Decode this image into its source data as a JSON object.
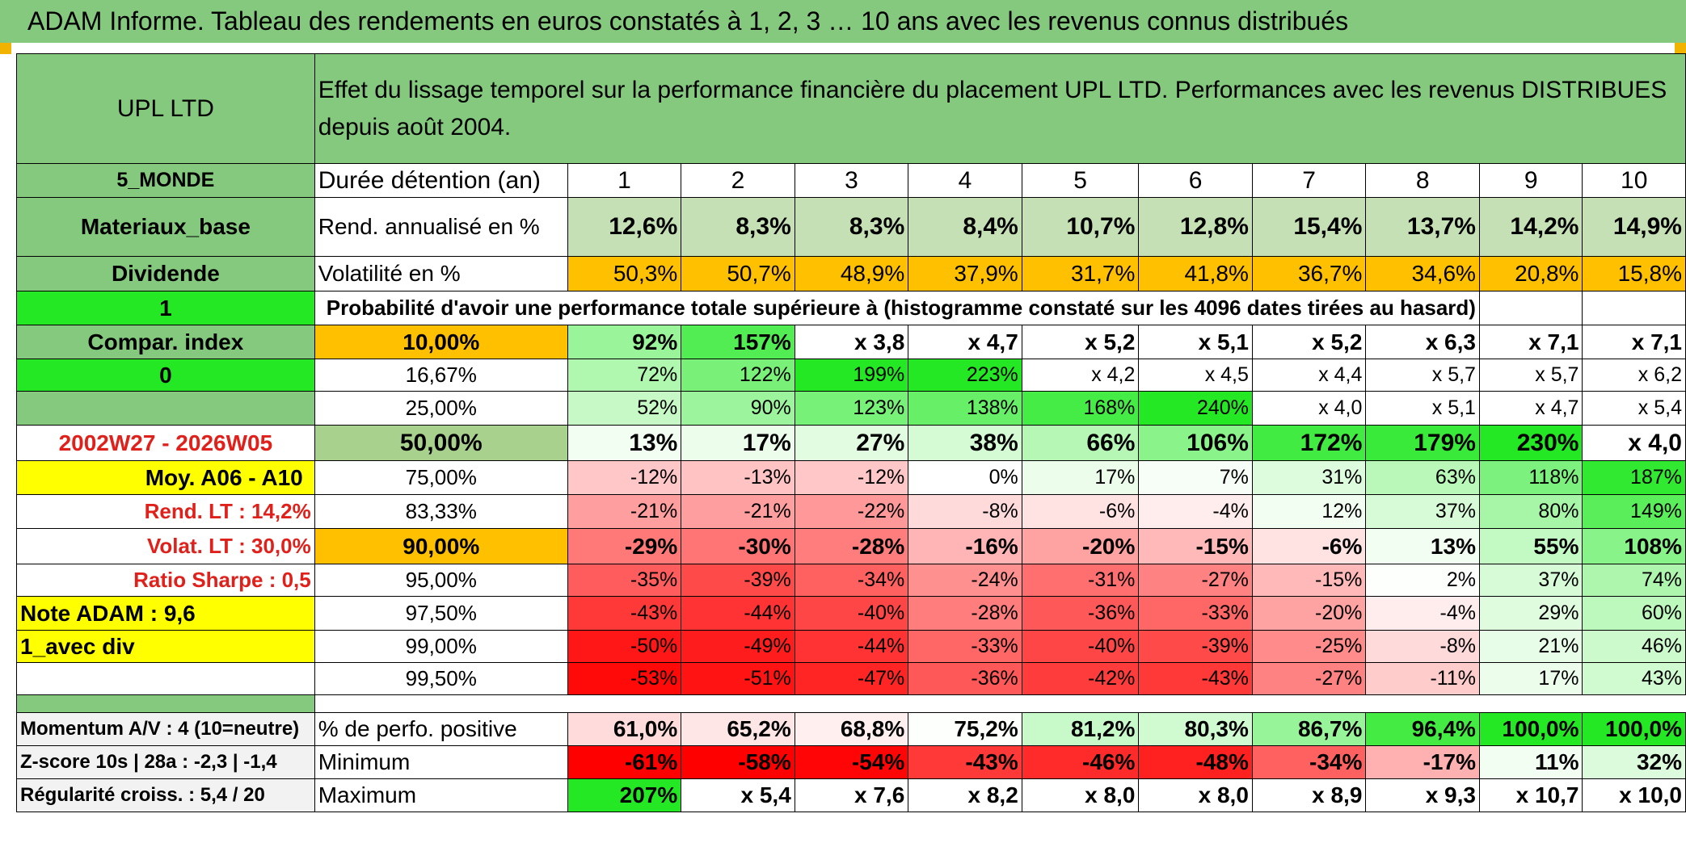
{
  "title": "ADAM Informe. Tableau des rendements en euros constatés à 1, 2, 3 … 10 ans avec les revenus connus distribués",
  "header": {
    "fund": "UPL LTD",
    "description": "Effet du lissage temporel sur la performance financière du placement UPL LTD. Performances avec les revenus DISTRIBUES depuis août 2004."
  },
  "left": {
    "region": "5_MONDE",
    "sector": "Materiaux_base",
    "income": "Dividende",
    "mode1": "1",
    "compar": "Compar. index",
    "mode2": "0",
    "period": "2002W27 - 2026W05",
    "moy": "Moy. A06 - A10",
    "rend_lt_label": "Rend. LT :",
    "rend_lt_value": "14,2%",
    "volat_lt_label": "Volat. LT :",
    "volat_lt_value": "30,0%",
    "sharpe_label": "Ratio Sharpe :",
    "sharpe_value": "0,5",
    "note": "Note ADAM : 9,6",
    "avec_div": "1_avec div"
  },
  "duration": {
    "label": "Durée détention (an)",
    "years": [
      "1",
      "2",
      "3",
      "4",
      "5",
      "6",
      "7",
      "8",
      "9",
      "10"
    ]
  },
  "rend": {
    "label": "Rend. annualisé en %",
    "values": [
      "12,6%",
      "8,3%",
      "8,3%",
      "8,4%",
      "10,7%",
      "12,8%",
      "15,4%",
      "13,7%",
      "14,2%",
      "14,9%"
    ]
  },
  "volat": {
    "label": "Volatilité en %",
    "values": [
      "50,3%",
      "50,7%",
      "48,9%",
      "37,9%",
      "31,7%",
      "41,8%",
      "36,7%",
      "34,6%",
      "20,8%",
      "15,8%"
    ]
  },
  "proba_label": "Probabilité d'avoir une performance totale supérieure à (histogramme constaté sur les 4096 dates tirées au hasard)",
  "quantiles": [
    {
      "p": "10,00%",
      "v": [
        "92%",
        "157%",
        "x 3,8",
        "x 4,7",
        "x 5,2",
        "x 5,1",
        "x 5,2",
        "x 6,3",
        "x 7,1",
        "x 7,1"
      ]
    },
    {
      "p": "16,67%",
      "v": [
        "72%",
        "122%",
        "199%",
        "223%",
        "x 4,2",
        "x 4,5",
        "x 4,4",
        "x 5,7",
        "x 5,7",
        "x 6,2"
      ]
    },
    {
      "p": "25,00%",
      "v": [
        "52%",
        "90%",
        "123%",
        "138%",
        "168%",
        "240%",
        "x 4,0",
        "x 5,1",
        "x 4,7",
        "x 5,4"
      ]
    },
    {
      "p": "50,00%",
      "v": [
        "13%",
        "17%",
        "27%",
        "38%",
        "66%",
        "106%",
        "172%",
        "179%",
        "230%",
        "x 4,0"
      ]
    },
    {
      "p": "75,00%",
      "v": [
        "-12%",
        "-13%",
        "-12%",
        "0%",
        "17%",
        "7%",
        "31%",
        "63%",
        "118%",
        "187%"
      ]
    },
    {
      "p": "83,33%",
      "v": [
        "-21%",
        "-21%",
        "-22%",
        "-8%",
        "-6%",
        "-4%",
        "12%",
        "37%",
        "80%",
        "149%"
      ]
    },
    {
      "p": "90,00%",
      "v": [
        "-29%",
        "-30%",
        "-28%",
        "-16%",
        "-20%",
        "-15%",
        "-6%",
        "13%",
        "55%",
        "108%"
      ]
    },
    {
      "p": "95,00%",
      "v": [
        "-35%",
        "-39%",
        "-34%",
        "-24%",
        "-31%",
        "-27%",
        "-15%",
        "2%",
        "37%",
        "74%"
      ]
    },
    {
      "p": "97,50%",
      "v": [
        "-43%",
        "-44%",
        "-40%",
        "-28%",
        "-36%",
        "-33%",
        "-20%",
        "-4%",
        "29%",
        "60%"
      ]
    },
    {
      "p": "99,00%",
      "v": [
        "-50%",
        "-49%",
        "-44%",
        "-33%",
        "-40%",
        "-39%",
        "-25%",
        "-8%",
        "21%",
        "46%"
      ]
    },
    {
      "p": "99,50%",
      "v": [
        "-53%",
        "-51%",
        "-47%",
        "-36%",
        "-42%",
        "-43%",
        "-27%",
        "-11%",
        "17%",
        "43%"
      ]
    }
  ],
  "bottom": {
    "momentum": "Momentum A/V : 4 (10=neutre)",
    "zscore": "Z-score 10s | 28a : -2,3 | -1,4",
    "regularite": "Régularité croiss. : 5,4 / 20",
    "positive_label": "% de perfo. positive",
    "positive": [
      "61,0%",
      "65,2%",
      "68,8%",
      "75,2%",
      "81,2%",
      "80,3%",
      "86,7%",
      "96,4%",
      "100,0%",
      "100,0%"
    ],
    "min_label": "Minimum",
    "minimum": [
      "-61%",
      "-58%",
      "-54%",
      "-43%",
      "-46%",
      "-48%",
      "-34%",
      "-17%",
      "11%",
      "32%"
    ],
    "max_label": "Maximum",
    "maximum": [
      "207%",
      "x 5,4",
      "x 7,6",
      "x 8,2",
      "x 8,0",
      "x 8,0",
      "x 8,9",
      "x 9,3",
      "x 10,7",
      "x 10,0"
    ]
  },
  "colors": {
    "header_green": "#84c97e",
    "light_green": "#c5e0b4",
    "orange": "#ffc000",
    "yellow": "#ffff00",
    "bright_green": "#23e823",
    "red": "#ff0000",
    "red_text": "#e0201a"
  }
}
